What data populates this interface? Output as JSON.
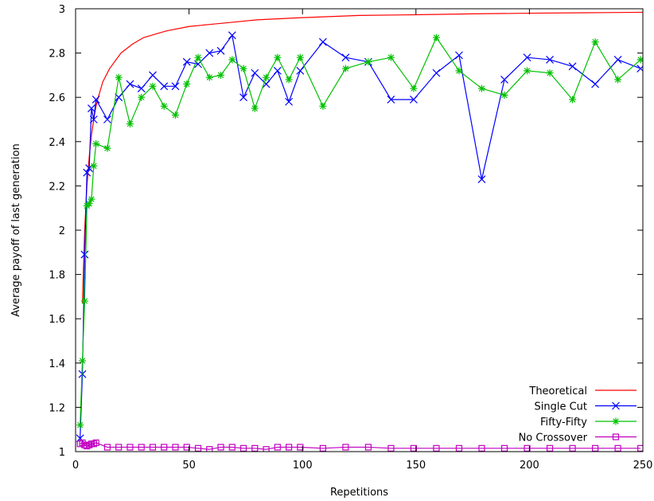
{
  "chart_data": {
    "type": "line",
    "title": "",
    "xlabel": "Repetitions",
    "ylabel": "Average payoff of last generation",
    "xlim": [
      0,
      250
    ],
    "ylim": [
      1,
      3
    ],
    "xticks": [
      0,
      50,
      100,
      150,
      200,
      250
    ],
    "yticks": [
      1,
      1.2,
      1.4,
      1.6,
      1.8,
      2,
      2.2,
      2.4,
      2.6,
      2.8,
      3
    ],
    "grid": false,
    "legend_position": "bottom-right",
    "series": [
      {
        "name": "Theoretical",
        "color": "#ff0000",
        "marker": "none",
        "x": [
          3,
          4,
          5,
          6,
          7,
          8,
          9,
          10,
          12,
          15,
          20,
          25,
          30,
          40,
          50,
          60,
          70,
          80,
          100,
          125,
          150,
          175,
          200,
          225,
          250
        ],
        "y": [
          1.67,
          2.0,
          2.2,
          2.33,
          2.43,
          2.5,
          2.56,
          2.6,
          2.67,
          2.73,
          2.8,
          2.84,
          2.87,
          2.9,
          2.92,
          2.93,
          2.94,
          2.95,
          2.96,
          2.97,
          2.973,
          2.977,
          2.98,
          2.982,
          2.984
        ]
      },
      {
        "name": "Single Cut",
        "color": "#0000ff",
        "marker": "x",
        "x": [
          2,
          3,
          4,
          5,
          6,
          7,
          8,
          9,
          14,
          19,
          24,
          29,
          34,
          39,
          44,
          49,
          54,
          59,
          64,
          69,
          74,
          79,
          84,
          89,
          94,
          99,
          109,
          119,
          129,
          139,
          149,
          159,
          169,
          179,
          189,
          199,
          209,
          219,
          229,
          239,
          249
        ],
        "y": [
          1.06,
          1.35,
          1.89,
          2.26,
          2.28,
          2.55,
          2.5,
          2.59,
          2.5,
          2.6,
          2.66,
          2.64,
          2.7,
          2.65,
          2.65,
          2.76,
          2.75,
          2.8,
          2.81,
          2.88,
          2.6,
          2.71,
          2.66,
          2.72,
          2.58,
          2.72,
          2.85,
          2.78,
          2.76,
          2.59,
          2.59,
          2.71,
          2.79,
          2.23,
          2.68,
          2.78,
          2.77,
          2.74,
          2.66,
          2.77,
          2.73
        ]
      },
      {
        "name": "Fifty-Fifty",
        "color": "#00c000",
        "marker": "*",
        "x": [
          2,
          3,
          4,
          5,
          6,
          7,
          8,
          9,
          14,
          19,
          24,
          29,
          34,
          39,
          44,
          49,
          54,
          59,
          64,
          69,
          74,
          79,
          84,
          89,
          94,
          99,
          109,
          119,
          129,
          139,
          149,
          159,
          169,
          179,
          189,
          199,
          209,
          219,
          229,
          239,
          249
        ],
        "y": [
          1.12,
          1.41,
          1.68,
          2.11,
          2.12,
          2.14,
          2.29,
          2.39,
          2.37,
          2.69,
          2.48,
          2.6,
          2.65,
          2.56,
          2.52,
          2.66,
          2.78,
          2.69,
          2.7,
          2.77,
          2.73,
          2.55,
          2.69,
          2.78,
          2.68,
          2.78,
          2.56,
          2.73,
          2.76,
          2.78,
          2.64,
          2.87,
          2.72,
          2.64,
          2.61,
          2.72,
          2.71,
          2.59,
          2.85,
          2.68,
          2.77
        ]
      },
      {
        "name": "No Crossover",
        "color": "#c000c0",
        "marker": "square",
        "x": [
          2,
          3,
          4,
          5,
          6,
          7,
          8,
          9,
          14,
          19,
          24,
          29,
          34,
          39,
          44,
          49,
          54,
          59,
          64,
          69,
          74,
          79,
          84,
          89,
          94,
          99,
          109,
          119,
          129,
          139,
          149,
          159,
          169,
          179,
          189,
          199,
          209,
          219,
          229,
          239,
          249
        ],
        "y": [
          1.035,
          1.04,
          1.03,
          1.025,
          1.03,
          1.035,
          1.035,
          1.04,
          1.02,
          1.02,
          1.02,
          1.02,
          1.02,
          1.02,
          1.02,
          1.02,
          1.015,
          1.01,
          1.02,
          1.02,
          1.015,
          1.015,
          1.01,
          1.02,
          1.02,
          1.02,
          1.015,
          1.02,
          1.02,
          1.015,
          1.015,
          1.015,
          1.015,
          1.015,
          1.015,
          1.015,
          1.015,
          1.015,
          1.015,
          1.015,
          1.015
        ]
      }
    ]
  }
}
